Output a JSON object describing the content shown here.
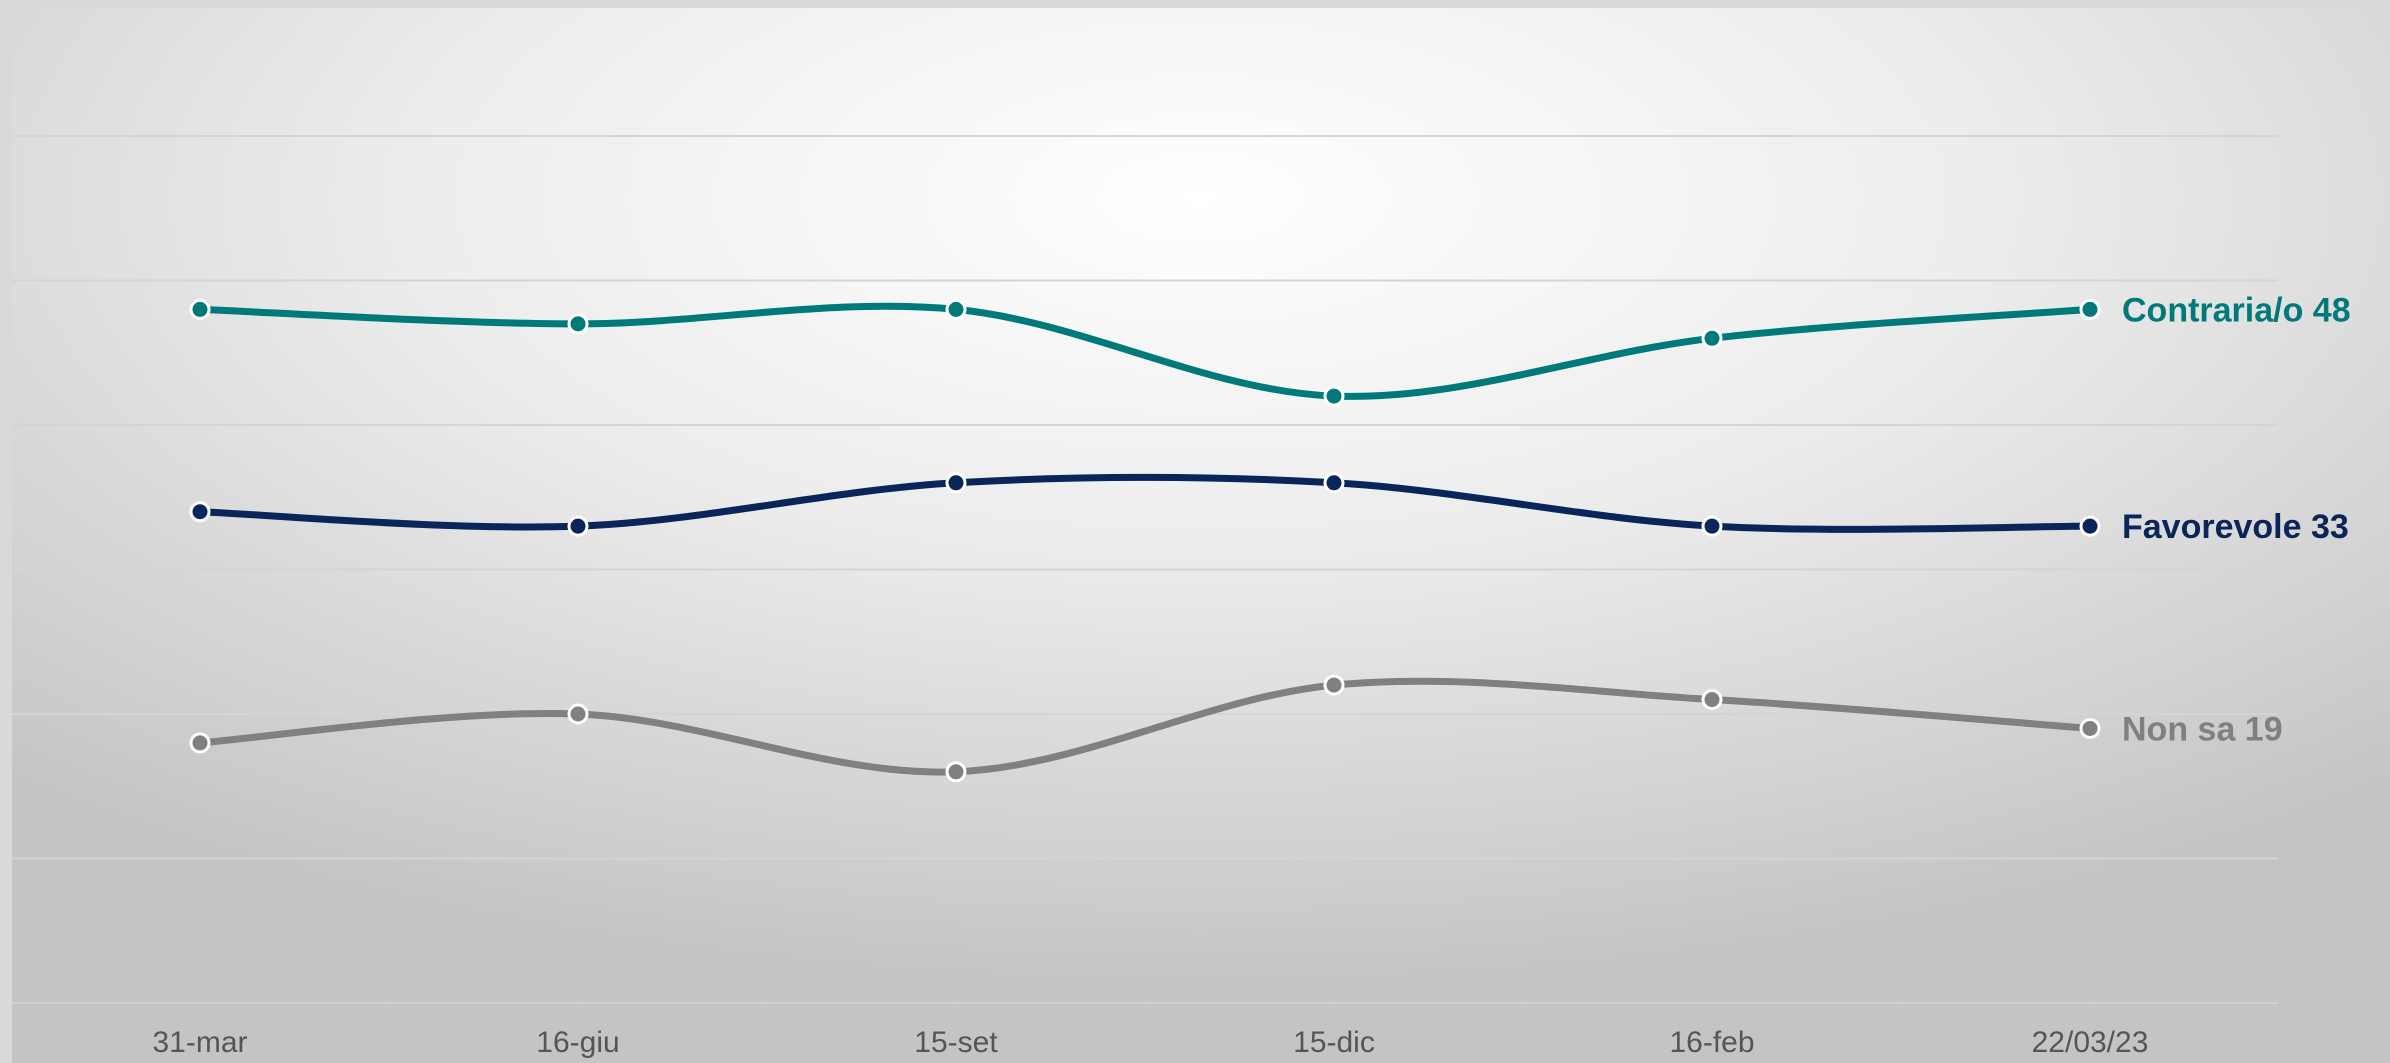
{
  "chart_data": {
    "type": "line",
    "categories": [
      "31-mar",
      "16-giu",
      "15-set",
      "15-dic",
      "16-feb",
      "22/03/23"
    ],
    "ylim": [
      0,
      60
    ],
    "grid": true,
    "legend": "none",
    "series": [
      {
        "name": "Contraria/o",
        "color": "#00797A",
        "values": [
          48,
          47,
          48,
          42,
          46,
          48
        ],
        "end_label": "Contraria/o 48"
      },
      {
        "name": "Favorevole",
        "color": "#0A2559",
        "values": [
          34,
          33,
          36,
          36,
          33,
          33
        ],
        "end_label": "Favorevole 33"
      },
      {
        "name": "Non sa",
        "color": "#808080",
        "values": [
          18,
          20,
          16,
          22,
          21,
          19
        ],
        "end_label": "Non sa 19"
      }
    ]
  }
}
